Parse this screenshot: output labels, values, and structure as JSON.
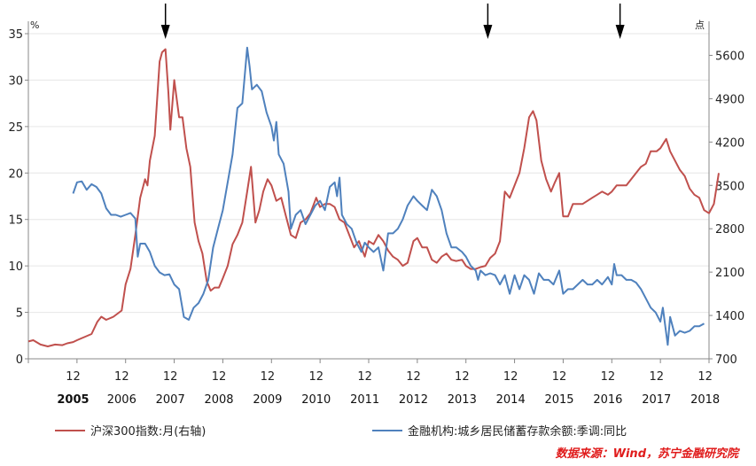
{
  "chart_data": {
    "type": "line",
    "title": "",
    "left_axis": {
      "unit": "%",
      "ylim": [
        0,
        35
      ],
      "ticks": [
        0,
        5,
        10,
        15,
        20,
        25,
        30,
        35
      ]
    },
    "right_axis": {
      "unit": "点",
      "ylim": [
        700,
        5950
      ],
      "ticks": [
        700,
        1400,
        2100,
        2800,
        3500,
        4200,
        4900,
        5600
      ]
    },
    "x_range": [
      2005.0,
      2019.0
    ],
    "month_labels": [
      "12",
      "12",
      "12",
      "12",
      "12",
      "12",
      "12",
      "12",
      "12",
      "12",
      "12",
      "12",
      "12",
      "12"
    ],
    "year_labels": [
      "2005",
      "2006",
      "2007",
      "2008",
      "2009",
      "2010",
      "2011",
      "2012",
      "2013",
      "2014",
      "2015",
      "2016",
      "2017",
      "2018"
    ],
    "arrows_at": [
      2007.82,
      2014.45,
      2017.17
    ],
    "series": [
      {
        "name": "沪深300指数:月(右轴)",
        "axis": "right",
        "color": "#c0504d",
        "points": [
          [
            2005.0,
            980
          ],
          [
            2005.1,
            1000
          ],
          [
            2005.25,
            930
          ],
          [
            2005.4,
            900
          ],
          [
            2005.55,
            930
          ],
          [
            2005.7,
            920
          ],
          [
            2005.8,
            950
          ],
          [
            2005.92,
            970
          ],
          [
            2006.0,
            1000
          ],
          [
            2006.15,
            1050
          ],
          [
            2006.3,
            1100
          ],
          [
            2006.42,
            1300
          ],
          [
            2006.5,
            1380
          ],
          [
            2006.6,
            1330
          ],
          [
            2006.75,
            1380
          ],
          [
            2006.92,
            1480
          ],
          [
            2007.0,
            1900
          ],
          [
            2007.1,
            2150
          ],
          [
            2007.2,
            2700
          ],
          [
            2007.3,
            3300
          ],
          [
            2007.4,
            3600
          ],
          [
            2007.45,
            3500
          ],
          [
            2007.5,
            3900
          ],
          [
            2007.6,
            4300
          ],
          [
            2007.7,
            5500
          ],
          [
            2007.75,
            5650
          ],
          [
            2007.82,
            5700
          ],
          [
            2007.88,
            5000
          ],
          [
            2007.92,
            4400
          ],
          [
            2008.0,
            5200
          ],
          [
            2008.1,
            4600
          ],
          [
            2008.17,
            4600
          ],
          [
            2008.25,
            4100
          ],
          [
            2008.33,
            3800
          ],
          [
            2008.42,
            2900
          ],
          [
            2008.5,
            2600
          ],
          [
            2008.58,
            2400
          ],
          [
            2008.67,
            1950
          ],
          [
            2008.75,
            1800
          ],
          [
            2008.83,
            1850
          ],
          [
            2008.92,
            1850
          ],
          [
            2009.0,
            2000
          ],
          [
            2009.1,
            2200
          ],
          [
            2009.2,
            2550
          ],
          [
            2009.3,
            2700
          ],
          [
            2009.4,
            2900
          ],
          [
            2009.5,
            3400
          ],
          [
            2009.58,
            3800
          ],
          [
            2009.67,
            2900
          ],
          [
            2009.75,
            3100
          ],
          [
            2009.83,
            3400
          ],
          [
            2009.92,
            3600
          ],
          [
            2010.0,
            3500
          ],
          [
            2010.1,
            3250
          ],
          [
            2010.2,
            3300
          ],
          [
            2010.3,
            3000
          ],
          [
            2010.4,
            2700
          ],
          [
            2010.5,
            2650
          ],
          [
            2010.6,
            2900
          ],
          [
            2010.7,
            2950
          ],
          [
            2010.8,
            3050
          ],
          [
            2010.92,
            3300
          ],
          [
            2011.0,
            3150
          ],
          [
            2011.1,
            3200
          ],
          [
            2011.2,
            3200
          ],
          [
            2011.3,
            3150
          ],
          [
            2011.4,
            2950
          ],
          [
            2011.5,
            2900
          ],
          [
            2011.6,
            2700
          ],
          [
            2011.7,
            2500
          ],
          [
            2011.8,
            2600
          ],
          [
            2011.92,
            2350
          ],
          [
            2012.0,
            2600
          ],
          [
            2012.1,
            2550
          ],
          [
            2012.2,
            2700
          ],
          [
            2012.3,
            2600
          ],
          [
            2012.4,
            2450
          ],
          [
            2012.5,
            2350
          ],
          [
            2012.6,
            2300
          ],
          [
            2012.7,
            2200
          ],
          [
            2012.8,
            2250
          ],
          [
            2012.92,
            2600
          ],
          [
            2013.0,
            2650
          ],
          [
            2013.1,
            2500
          ],
          [
            2013.2,
            2500
          ],
          [
            2013.3,
            2300
          ],
          [
            2013.4,
            2250
          ],
          [
            2013.5,
            2350
          ],
          [
            2013.6,
            2400
          ],
          [
            2013.7,
            2300
          ],
          [
            2013.8,
            2280
          ],
          [
            2013.92,
            2300
          ],
          [
            2014.0,
            2200
          ],
          [
            2014.1,
            2150
          ],
          [
            2014.2,
            2150
          ],
          [
            2014.3,
            2180
          ],
          [
            2014.4,
            2200
          ],
          [
            2014.5,
            2330
          ],
          [
            2014.6,
            2400
          ],
          [
            2014.7,
            2600
          ],
          [
            2014.8,
            3400
          ],
          [
            2014.9,
            3300
          ],
          [
            2015.0,
            3500
          ],
          [
            2015.1,
            3700
          ],
          [
            2015.2,
            4100
          ],
          [
            2015.3,
            4600
          ],
          [
            2015.38,
            4700
          ],
          [
            2015.45,
            4550
          ],
          [
            2015.55,
            3900
          ],
          [
            2015.65,
            3600
          ],
          [
            2015.75,
            3400
          ],
          [
            2015.83,
            3550
          ],
          [
            2015.92,
            3700
          ],
          [
            2016.0,
            3000
          ],
          [
            2016.1,
            3000
          ],
          [
            2016.2,
            3200
          ],
          [
            2016.3,
            3200
          ],
          [
            2016.4,
            3200
          ],
          [
            2016.5,
            3250
          ],
          [
            2016.6,
            3300
          ],
          [
            2016.7,
            3350
          ],
          [
            2016.8,
            3400
          ],
          [
            2016.92,
            3350
          ],
          [
            2017.0,
            3400
          ],
          [
            2017.1,
            3500
          ],
          [
            2017.2,
            3500
          ],
          [
            2017.3,
            3500
          ],
          [
            2017.4,
            3600
          ],
          [
            2017.5,
            3700
          ],
          [
            2017.6,
            3800
          ],
          [
            2017.7,
            3850
          ],
          [
            2017.8,
            4050
          ],
          [
            2017.92,
            4050
          ],
          [
            2018.0,
            4100
          ],
          [
            2018.12,
            4250
          ],
          [
            2018.2,
            4050
          ],
          [
            2018.3,
            3900
          ],
          [
            2018.4,
            3750
          ],
          [
            2018.5,
            3650
          ],
          [
            2018.6,
            3450
          ],
          [
            2018.7,
            3350
          ],
          [
            2018.8,
            3300
          ],
          [
            2018.9,
            3100
          ],
          [
            2019.0,
            3050
          ],
          [
            2019.1,
            3200
          ],
          [
            2019.2,
            3700
          ]
        ]
      },
      {
        "name": "金融机构:城乡居民储蓄存款余额:季调:同比",
        "axis": "left",
        "color": "#4f81bd",
        "points": [
          [
            2005.92,
            17.8
          ],
          [
            2006.0,
            19.0
          ],
          [
            2006.1,
            19.1
          ],
          [
            2006.2,
            18.2
          ],
          [
            2006.3,
            18.8
          ],
          [
            2006.4,
            18.5
          ],
          [
            2006.5,
            17.8
          ],
          [
            2006.6,
            16.2
          ],
          [
            2006.7,
            15.5
          ],
          [
            2006.8,
            15.5
          ],
          [
            2006.9,
            15.3
          ],
          [
            2007.0,
            15.5
          ],
          [
            2007.1,
            15.7
          ],
          [
            2007.2,
            15.1
          ],
          [
            2007.25,
            11.0
          ],
          [
            2007.3,
            12.4
          ],
          [
            2007.4,
            12.4
          ],
          [
            2007.5,
            11.5
          ],
          [
            2007.6,
            10.0
          ],
          [
            2007.7,
            9.3
          ],
          [
            2007.8,
            9.0
          ],
          [
            2007.9,
            9.1
          ],
          [
            2008.0,
            8.0
          ],
          [
            2008.1,
            7.5
          ],
          [
            2008.2,
            4.5
          ],
          [
            2008.3,
            4.2
          ],
          [
            2008.4,
            5.5
          ],
          [
            2008.5,
            6.0
          ],
          [
            2008.6,
            7.0
          ],
          [
            2008.7,
            8.5
          ],
          [
            2008.8,
            12.0
          ],
          [
            2008.9,
            14.0
          ],
          [
            2009.0,
            16.0
          ],
          [
            2009.1,
            19.0
          ],
          [
            2009.2,
            22.0
          ],
          [
            2009.3,
            27.0
          ],
          [
            2009.4,
            27.5
          ],
          [
            2009.5,
            33.5
          ],
          [
            2009.55,
            31.5
          ],
          [
            2009.6,
            29.0
          ],
          [
            2009.7,
            29.5
          ],
          [
            2009.8,
            28.8
          ],
          [
            2009.9,
            26.5
          ],
          [
            2010.0,
            25.0
          ],
          [
            2010.05,
            23.5
          ],
          [
            2010.1,
            25.5
          ],
          [
            2010.15,
            22.0
          ],
          [
            2010.25,
            21.0
          ],
          [
            2010.35,
            18.0
          ],
          [
            2010.4,
            14.0
          ],
          [
            2010.5,
            15.5
          ],
          [
            2010.6,
            16.0
          ],
          [
            2010.7,
            14.5
          ],
          [
            2010.8,
            15.5
          ],
          [
            2010.9,
            16.5
          ],
          [
            2011.0,
            17.0
          ],
          [
            2011.1,
            16.0
          ],
          [
            2011.2,
            18.5
          ],
          [
            2011.3,
            19.0
          ],
          [
            2011.35,
            17.5
          ],
          [
            2011.4,
            19.5
          ],
          [
            2011.45,
            15.5
          ],
          [
            2011.55,
            14.5
          ],
          [
            2011.65,
            14.0
          ],
          [
            2011.75,
            12.5
          ],
          [
            2011.85,
            11.5
          ],
          [
            2011.92,
            12.5
          ],
          [
            2012.0,
            12.0
          ],
          [
            2012.1,
            11.5
          ],
          [
            2012.2,
            12.0
          ],
          [
            2012.3,
            9.5
          ],
          [
            2012.4,
            13.5
          ],
          [
            2012.5,
            13.5
          ],
          [
            2012.6,
            14.0
          ],
          [
            2012.7,
            15.0
          ],
          [
            2012.8,
            16.5
          ],
          [
            2012.92,
            17.5
          ],
          [
            2013.0,
            17.0
          ],
          [
            2013.1,
            16.5
          ],
          [
            2013.2,
            16.0
          ],
          [
            2013.3,
            18.2
          ],
          [
            2013.4,
            17.5
          ],
          [
            2013.5,
            16.0
          ],
          [
            2013.6,
            13.5
          ],
          [
            2013.7,
            12.0
          ],
          [
            2013.8,
            12.0
          ],
          [
            2013.92,
            11.5
          ],
          [
            2014.0,
            11.0
          ],
          [
            2014.1,
            10.0
          ],
          [
            2014.2,
            9.5
          ],
          [
            2014.25,
            8.5
          ],
          [
            2014.3,
            9.5
          ],
          [
            2014.4,
            9.0
          ],
          [
            2014.5,
            9.2
          ],
          [
            2014.6,
            9.0
          ],
          [
            2014.7,
            8.0
          ],
          [
            2014.8,
            9.0
          ],
          [
            2014.9,
            7.0
          ],
          [
            2015.0,
            9.0
          ],
          [
            2015.1,
            7.5
          ],
          [
            2015.2,
            9.0
          ],
          [
            2015.3,
            8.5
          ],
          [
            2015.4,
            7.0
          ],
          [
            2015.5,
            9.2
          ],
          [
            2015.6,
            8.5
          ],
          [
            2015.7,
            8.5
          ],
          [
            2015.8,
            8.0
          ],
          [
            2015.92,
            9.5
          ],
          [
            2016.0,
            7.0
          ],
          [
            2016.1,
            7.5
          ],
          [
            2016.2,
            7.5
          ],
          [
            2016.3,
            8.0
          ],
          [
            2016.4,
            8.5
          ],
          [
            2016.5,
            8.0
          ],
          [
            2016.6,
            8.0
          ],
          [
            2016.7,
            8.5
          ],
          [
            2016.8,
            8.0
          ],
          [
            2016.92,
            8.8
          ],
          [
            2017.0,
            8.0
          ],
          [
            2017.05,
            10.2
          ],
          [
            2017.1,
            9.0
          ],
          [
            2017.2,
            9.0
          ],
          [
            2017.3,
            8.5
          ],
          [
            2017.4,
            8.5
          ],
          [
            2017.5,
            8.2
          ],
          [
            2017.6,
            7.5
          ],
          [
            2017.7,
            6.5
          ],
          [
            2017.8,
            5.5
          ],
          [
            2017.9,
            5.0
          ],
          [
            2018.0,
            4.0
          ],
          [
            2018.05,
            5.5
          ],
          [
            2018.15,
            1.5
          ],
          [
            2018.2,
            4.5
          ],
          [
            2018.3,
            2.5
          ],
          [
            2018.4,
            3.0
          ],
          [
            2018.5,
            2.8
          ],
          [
            2018.6,
            3.0
          ],
          [
            2018.7,
            3.5
          ],
          [
            2018.8,
            3.5
          ],
          [
            2018.9,
            3.8
          ]
        ]
      }
    ]
  },
  "legend": {
    "items": [
      {
        "label": "沪深300指数:月(右轴)",
        "color": "#c0504d"
      },
      {
        "label": "金融机构:城乡居民储蓄存款余额:季调:同比",
        "color": "#4f81bd"
      }
    ]
  },
  "source": "数据来源：Wind，苏宁金融研究院"
}
